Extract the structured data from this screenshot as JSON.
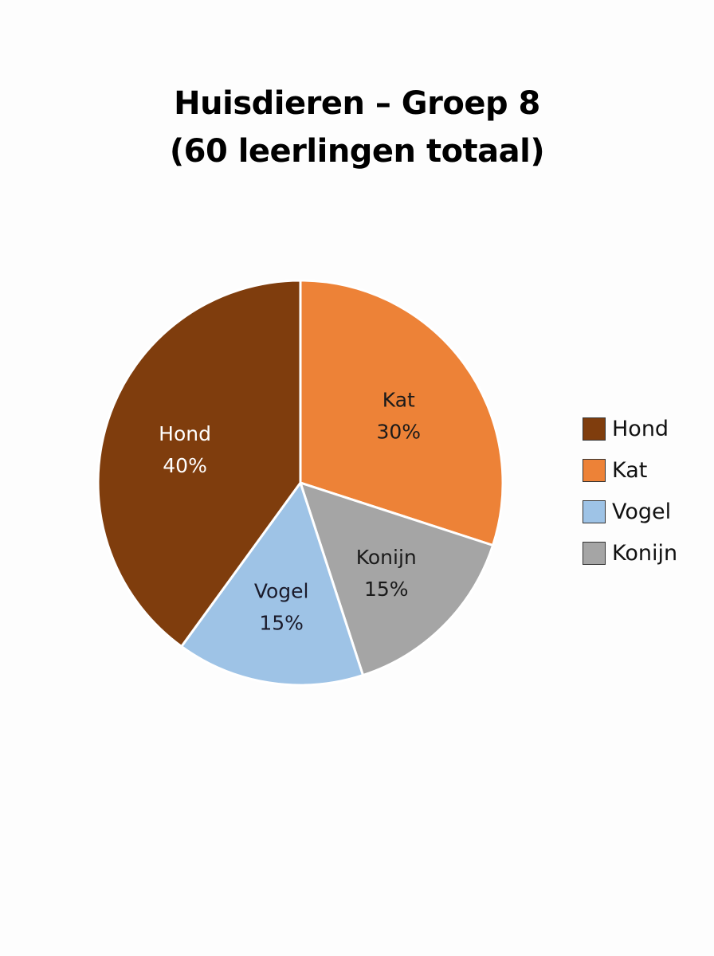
{
  "title": {
    "line1": "Huisdieren – Groep 8",
    "line2": "(60 leerlingen totaal)"
  },
  "legend": [
    {
      "label": "Hond",
      "color": "#7f3d0d"
    },
    {
      "label": "Kat",
      "color": "#ed8237"
    },
    {
      "label": "Vogel",
      "color": "#9ec3e6"
    },
    {
      "label": "Konijn",
      "color": "#a5a5a5"
    }
  ],
  "slices": [
    {
      "name": "Kat",
      "pct_label": "30%",
      "value": 30,
      "color": "#ed8237",
      "text_color": "#1a1a1a"
    },
    {
      "name": "Konijn",
      "pct_label": "15%",
      "value": 15,
      "color": "#a5a5a5",
      "text_color": "#1a1a1a"
    },
    {
      "name": "Vogel",
      "pct_label": "15%",
      "value": 15,
      "color": "#9ec3e6",
      "text_color": "#1a1a2a"
    },
    {
      "name": "Hond",
      "pct_label": "40%",
      "value": 40,
      "color": "#7f3d0d",
      "text_color": "#ffffff"
    }
  ],
  "chart_data": {
    "type": "pie",
    "title": "Huisdieren – Groep 8 (60 leerlingen totaal)",
    "categories": [
      "Hond",
      "Kat",
      "Vogel",
      "Konijn"
    ],
    "values": [
      40,
      30,
      15,
      15
    ],
    "unit": "%",
    "data_labels": [
      "Hond 40%",
      "Kat 30%",
      "Vogel 15%",
      "Konijn 15%"
    ],
    "colors": [
      "#7f3d0d",
      "#ed8237",
      "#9ec3e6",
      "#a5a5a5"
    ],
    "start_angle": "12 o'clock",
    "direction": "clockwise (Kat, Konijn, Vogel, Hond)",
    "legend_position": "right",
    "total_students": 60
  }
}
